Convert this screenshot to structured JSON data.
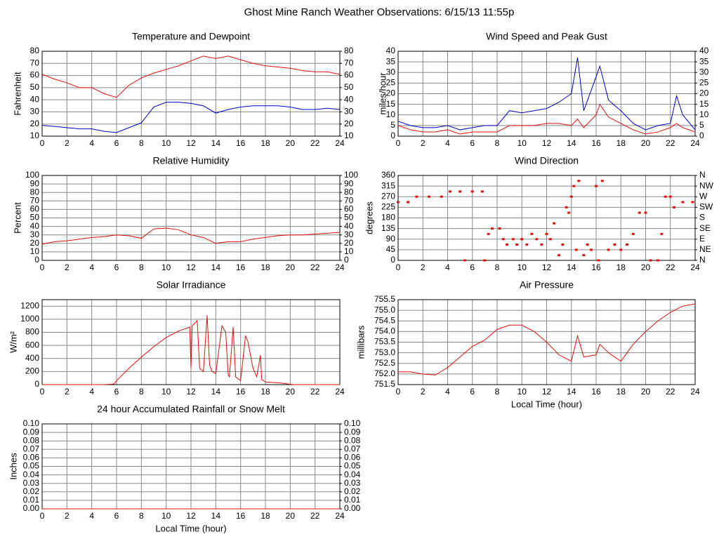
{
  "title": "Ghost Mine Ranch Weather Observations: 6/15/13 11:55p",
  "chart_data": [
    {
      "type": "line",
      "title": "Temperature and Dewpoint",
      "ylabel": "Fahrenheit",
      "x": [
        0,
        1,
        2,
        3,
        4,
        5,
        6,
        7,
        8,
        9,
        10,
        11,
        12,
        13,
        14,
        15,
        16,
        17,
        18,
        19,
        20,
        21,
        22,
        23,
        24
      ],
      "series": [
        {
          "color": "#e01010",
          "values": [
            61,
            57,
            54,
            50,
            50,
            45,
            42,
            52,
            58,
            62,
            65,
            68,
            72,
            76,
            74,
            76,
            73,
            70,
            68,
            67,
            66,
            64,
            63,
            63,
            61
          ]
        },
        {
          "color": "#0000c8",
          "values": [
            19,
            18,
            17,
            16,
            16,
            14,
            13,
            17,
            21,
            34,
            38,
            38,
            37,
            35,
            29,
            32,
            34,
            35,
            35,
            35,
            34,
            32,
            32,
            33,
            32
          ]
        }
      ],
      "xlim": [
        0,
        24
      ],
      "xticks": [
        0,
        2,
        4,
        6,
        8,
        10,
        12,
        14,
        16,
        18,
        20,
        22,
        24
      ],
      "ylim": [
        10,
        80
      ],
      "yticks": [
        10,
        20,
        30,
        40,
        50,
        60,
        70,
        80
      ],
      "y2lim": [
        10,
        80
      ],
      "y2ticks": [
        10,
        20,
        30,
        40,
        50,
        60,
        70,
        80
      ],
      "grid": true
    },
    {
      "type": "line",
      "title": "Wind Speed and Peak Gust",
      "ylabel": "miles/hour",
      "x": [
        0,
        1,
        2,
        3,
        4,
        5,
        6,
        7,
        8,
        9,
        10,
        11,
        12,
        13,
        14,
        14.5,
        15,
        16,
        16.3,
        17,
        18,
        19,
        20,
        21,
        22,
        22.5,
        23,
        24
      ],
      "series": [
        {
          "color": "#e01010",
          "values": [
            5,
            3,
            2,
            2,
            3,
            1,
            2,
            2,
            2,
            5,
            5,
            5,
            6,
            6,
            5,
            8,
            4,
            10,
            15,
            9,
            6,
            3,
            1,
            2,
            4,
            6,
            4,
            2
          ]
        },
        {
          "color": "#0000c8",
          "values": [
            7,
            5,
            4,
            4,
            5,
            3,
            4,
            5,
            5,
            12,
            11,
            12,
            13,
            16,
            20,
            37,
            12,
            28,
            33,
            17,
            12,
            6,
            3,
            5,
            6,
            19,
            10,
            3
          ]
        }
      ],
      "xlim": [
        0,
        24
      ],
      "xticks": [
        0,
        2,
        4,
        6,
        8,
        10,
        12,
        14,
        16,
        18,
        20,
        22,
        24
      ],
      "ylim": [
        0,
        40
      ],
      "yticks": [
        0,
        5,
        10,
        15,
        20,
        25,
        30,
        35,
        40
      ],
      "y2lim": [
        0,
        40
      ],
      "y2ticks": [
        0,
        5,
        10,
        15,
        20,
        25,
        30,
        35,
        40
      ],
      "grid": true
    },
    {
      "type": "line",
      "title": "Relative Humidity",
      "ylabel": "Percent",
      "x": [
        0,
        1,
        2,
        3,
        4,
        5,
        6,
        7,
        8,
        9,
        10,
        11,
        12,
        13,
        14,
        15,
        16,
        17,
        18,
        19,
        20,
        21,
        22,
        23,
        24
      ],
      "series": [
        {
          "color": "#e01010",
          "values": [
            19,
            22,
            23,
            25,
            27,
            28,
            30,
            29,
            26,
            37,
            38,
            36,
            30,
            27,
            20,
            22,
            22,
            25,
            27,
            29,
            30,
            30,
            31,
            32,
            33
          ]
        }
      ],
      "xlim": [
        0,
        24
      ],
      "xticks": [
        0,
        2,
        4,
        6,
        8,
        10,
        12,
        14,
        16,
        18,
        20,
        22,
        24
      ],
      "ylim": [
        0,
        100
      ],
      "yticks": [
        0,
        10,
        20,
        30,
        40,
        50,
        60,
        70,
        80,
        90,
        100
      ],
      "y2lim": [
        0,
        100
      ],
      "y2ticks": [
        0,
        10,
        20,
        30,
        40,
        50,
        60,
        70,
        80,
        90,
        100
      ],
      "grid": true
    },
    {
      "type": "scatter",
      "title": "Wind Direction",
      "ylabel": "degrees",
      "x": [
        0,
        0.8,
        1.5,
        2.5,
        3.5,
        4.2,
        5,
        5.4,
        6,
        6.8,
        7,
        7.3,
        7.6,
        8.2,
        8.5,
        8.8,
        9.3,
        9.6,
        10,
        10.4,
        10.8,
        11.2,
        11.6,
        12,
        12.3,
        12.6,
        13,
        13.3,
        13.6,
        13.8,
        14,
        14.2,
        14.4,
        14.6,
        15,
        15.3,
        15.6,
        16,
        16.2,
        16.5,
        17,
        17.5,
        18,
        18.5,
        19,
        19.5,
        20,
        20.4,
        21,
        21.3,
        21.6,
        22,
        22.3,
        23,
        23.8
      ],
      "series": [
        {
          "color": "#e01010",
          "values": [
            247,
            247,
            270,
            270,
            270,
            292,
            292,
            0,
            292,
            292,
            0,
            112,
            135,
            135,
            90,
            67,
            90,
            67,
            90,
            67,
            112,
            90,
            67,
            112,
            90,
            157,
            22,
            67,
            225,
            202,
            270,
            315,
            45,
            337,
            22,
            67,
            45,
            315,
            0,
            337,
            45,
            67,
            45,
            67,
            112,
            202,
            202,
            0,
            0,
            112,
            270,
            270,
            225,
            247,
            247
          ]
        }
      ],
      "xlim": [
        0,
        24
      ],
      "xticks": [
        0,
        2,
        4,
        6,
        8,
        10,
        12,
        14,
        16,
        18,
        20,
        22,
        24
      ],
      "ylim": [
        0,
        360
      ],
      "yticks": [
        0,
        45,
        90,
        135,
        180,
        225,
        270,
        315,
        360
      ],
      "y2lim": [
        0,
        360
      ],
      "y2ticks": [
        {
          "value": 0,
          "label": "N"
        },
        {
          "value": 45,
          "label": "NE"
        },
        {
          "value": 90,
          "label": "E"
        },
        {
          "value": 135,
          "label": "SE"
        },
        {
          "value": 180,
          "label": "S"
        },
        {
          "value": 225,
          "label": "SW"
        },
        {
          "value": 270,
          "label": "W"
        },
        {
          "value": 315,
          "label": "NW"
        },
        {
          "value": 360,
          "label": "N"
        }
      ],
      "grid": true
    },
    {
      "type": "line",
      "title": "Solar Irradiance",
      "ylabel": "W/m²",
      "x": [
        0,
        5,
        5.8,
        6,
        7,
        8,
        9,
        10,
        11,
        11.9,
        12,
        12.1,
        12.5,
        12.7,
        13,
        13.3,
        13.5,
        13.7,
        14,
        14.5,
        14.8,
        15,
        15.1,
        15.4,
        15.6,
        16,
        16.4,
        16.6,
        17,
        17.3,
        17.6,
        17.7,
        18,
        19,
        20,
        20.3,
        24
      ],
      "series": [
        {
          "color": "#e01010",
          "values": [
            0,
            0,
            10,
            60,
            250,
            420,
            580,
            720,
            820,
            880,
            250,
            900,
            980,
            250,
            200,
            1060,
            300,
            200,
            170,
            900,
            800,
            150,
            120,
            880,
            120,
            60,
            750,
            650,
            250,
            120,
            450,
            80,
            40,
            30,
            5,
            0,
            0
          ]
        }
      ],
      "xlim": [
        0,
        24
      ],
      "xticks": [
        0,
        2,
        4,
        6,
        8,
        10,
        12,
        14,
        16,
        18,
        20,
        22,
        24
      ],
      "ylim": [
        0,
        1300
      ],
      "yticks": [
        0,
        200,
        400,
        600,
        800,
        1000,
        1200
      ],
      "grid": true
    },
    {
      "type": "line",
      "title": "Air Pressure",
      "ylabel": "millibars",
      "xlabel": "Local Time (hour)",
      "x": [
        0,
        1,
        2,
        3,
        4,
        5,
        6,
        7,
        8,
        9,
        10,
        11,
        12,
        13,
        14,
        14.5,
        15,
        16,
        16.3,
        17,
        18,
        19,
        20,
        21,
        22,
        23,
        24
      ],
      "series": [
        {
          "color": "#e01010",
          "values": [
            752.1,
            752.1,
            752.0,
            751.95,
            752.3,
            752.8,
            753.3,
            753.6,
            754.1,
            754.3,
            754.3,
            754.0,
            753.5,
            752.9,
            752.6,
            753.8,
            752.8,
            752.9,
            753.4,
            753.0,
            752.6,
            753.4,
            754.0,
            754.5,
            754.9,
            755.2,
            755.3
          ]
        }
      ],
      "xlim": [
        0,
        24
      ],
      "xticks": [
        0,
        2,
        4,
        6,
        8,
        10,
        12,
        14,
        16,
        18,
        20,
        22,
        24
      ],
      "ylim": [
        751.5,
        755.5
      ],
      "yticks": [
        751.5,
        {
          "value": 752,
          "label": "752.0"
        },
        752.5,
        {
          "value": 753,
          "label": "753.0"
        },
        753.5,
        {
          "value": 754,
          "label": "754.0"
        },
        754.5,
        {
          "value": 755,
          "label": "755.0"
        },
        755.5
      ],
      "grid": true
    },
    {
      "type": "line",
      "title": "24 hour Accumulated Rainfall or Snow Melt",
      "ylabel": "Inches",
      "xlabel": "Local Time (hour)",
      "x": [
        0,
        24
      ],
      "series": [
        {
          "color": "#e01010",
          "values": [
            0,
            0
          ]
        }
      ],
      "xlim": [
        0,
        24
      ],
      "xticks": [
        0,
        2,
        4,
        6,
        8,
        10,
        12,
        14,
        16,
        18,
        20,
        22,
        24
      ],
      "ylim": [
        0,
        0.1
      ],
      "yticks": [
        {
          "value": 0,
          "label": "0.00"
        },
        0.01,
        0.02,
        0.03,
        0.04,
        0.05,
        0.06,
        0.07,
        0.08,
        0.09,
        {
          "value": 0.1,
          "label": "0.10"
        }
      ],
      "y2lim": [
        0,
        0.1
      ],
      "y2ticks": [
        {
          "value": 0,
          "label": "0.00"
        },
        0.01,
        0.02,
        0.03,
        0.04,
        0.05,
        0.06,
        0.07,
        0.08,
        0.09,
        {
          "value": 0.1,
          "label": "0.10"
        }
      ],
      "grid": true
    }
  ]
}
